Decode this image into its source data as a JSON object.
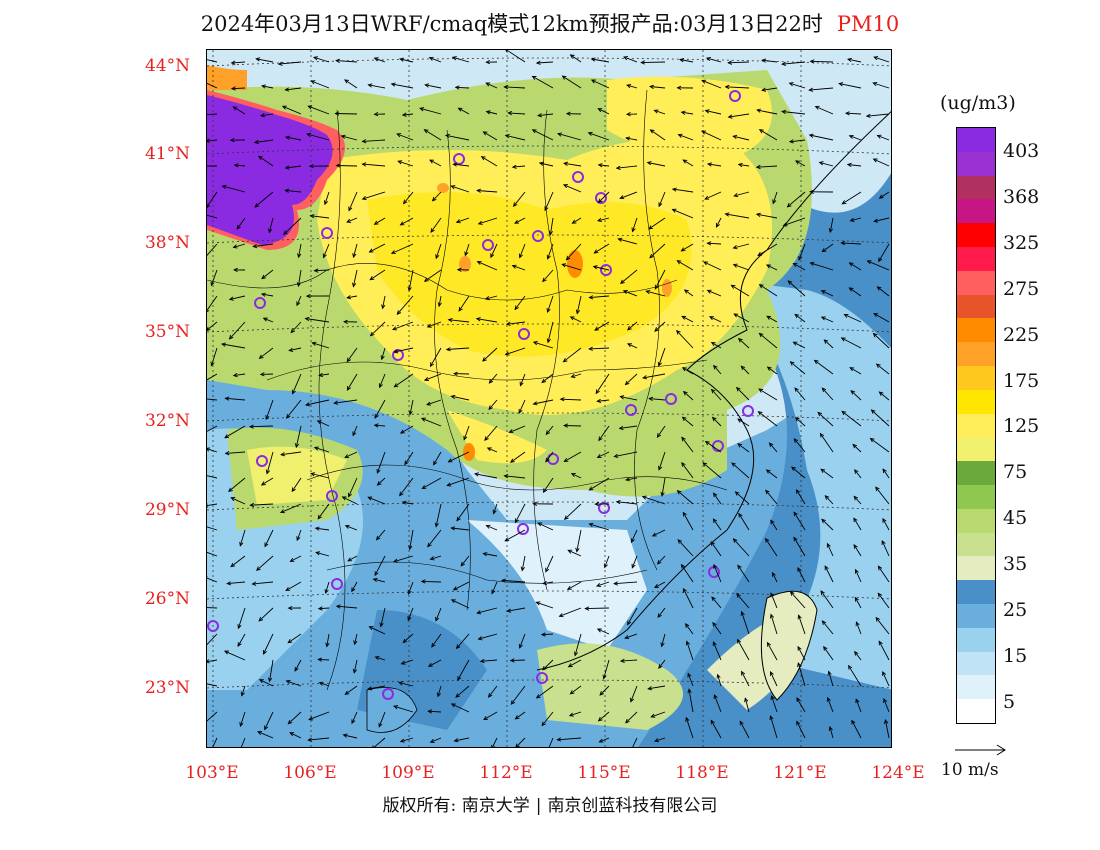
{
  "header": {
    "title": "2024年03月13日WRF/cmaq模式12km预报产品:03月13日22时",
    "pollutant": "PM10"
  },
  "map": {
    "lat_labels": [
      "44°N",
      "41°N",
      "38°N",
      "35°N",
      "32°N",
      "29°N",
      "26°N",
      "23°N"
    ],
    "lon_labels": [
      "103°E",
      "106°E",
      "109°E",
      "112°E",
      "115°E",
      "118°E",
      "121°E",
      "124°E"
    ],
    "lat_range": [
      21.0,
      44.5
    ],
    "lon_range": [
      102.8,
      124.0
    ]
  },
  "legend": {
    "unit": "(ug/m3)",
    "labels": [
      "403",
      "368",
      "325",
      "275",
      "225",
      "175",
      "125",
      "75",
      "45",
      "35",
      "25",
      "15",
      "5"
    ],
    "colors": [
      "#8a2be2",
      "#9b30d3",
      "#b03060",
      "#c71585",
      "#ff0000",
      "#ff1a4b",
      "#ff5f5f",
      "#e8542a",
      "#ff8c00",
      "#ffa028",
      "#ffc81e",
      "#ffe600",
      "#ffee58",
      "#f0f06e",
      "#6aaa3c",
      "#8ec850",
      "#b9d96e",
      "#c9e08e",
      "#e4ecc0",
      "#4a90c8",
      "#6aaede",
      "#9ad1ef",
      "#c0e4f6",
      "#dff1fa",
      "#ffffff"
    ]
  },
  "wind": {
    "reference_label": "10 m/s"
  },
  "footer": {
    "copyright": "版权所有: 南京大学",
    "company": "南京创蓝科技有限公司"
  }
}
